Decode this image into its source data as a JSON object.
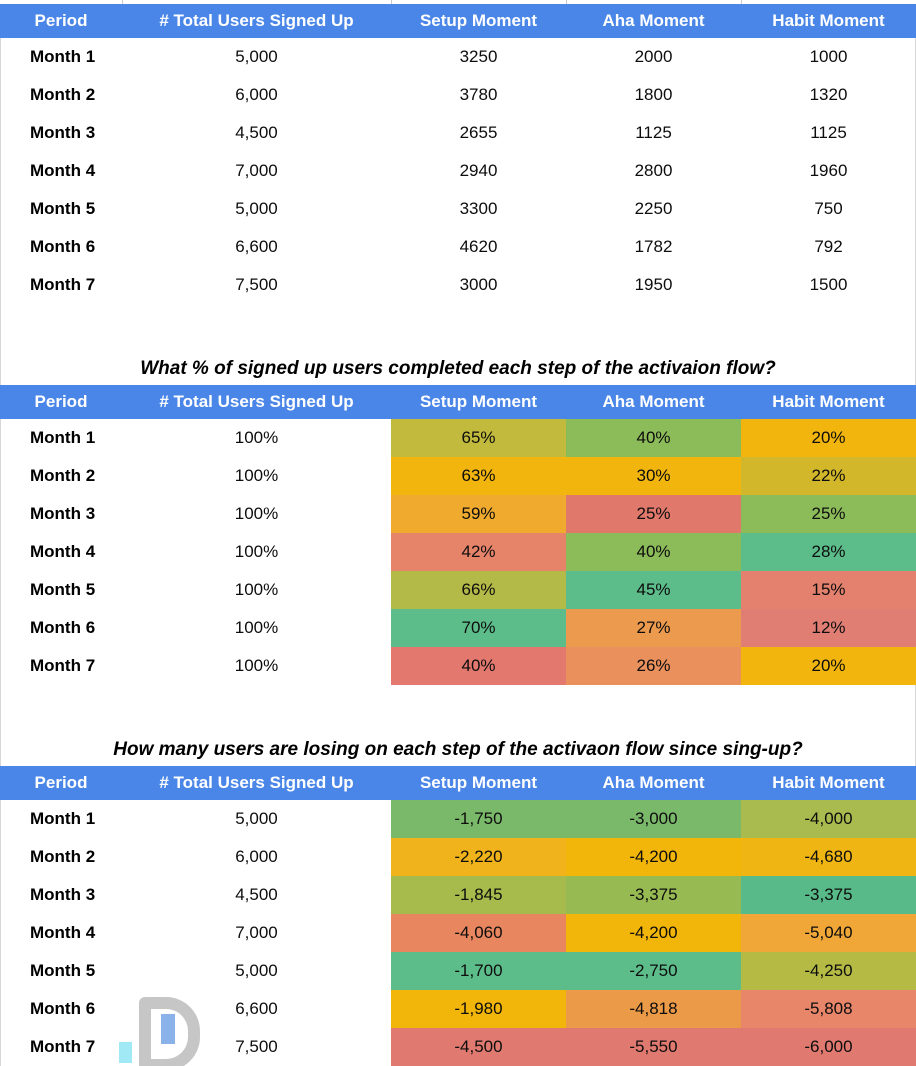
{
  "colors": {
    "header_bg": "#4a86e8",
    "header_text": "#ffffff",
    "heatmap_green": "#5cbd8b",
    "heatmap_yellow": "#f2b50e",
    "heatmap_red": "#e0756e"
  },
  "columns": [
    "Period",
    "# Total Users Signed Up",
    "Setup Moment",
    "Aha Moment",
    "Habit Moment"
  ],
  "tables": [
    {
      "id": "raw",
      "title": "",
      "rows": [
        [
          {
            "text": "Month 1"
          },
          {
            "text": "5,000"
          },
          {
            "text": "3250"
          },
          {
            "text": "2000"
          },
          {
            "text": "1000"
          }
        ],
        [
          {
            "text": "Month 2"
          },
          {
            "text": "6,000"
          },
          {
            "text": "3780"
          },
          {
            "text": "1800"
          },
          {
            "text": "1320"
          }
        ],
        [
          {
            "text": "Month 3"
          },
          {
            "text": "4,500"
          },
          {
            "text": "2655"
          },
          {
            "text": "1125"
          },
          {
            "text": "1125"
          }
        ],
        [
          {
            "text": "Month 4"
          },
          {
            "text": "7,000"
          },
          {
            "text": "2940"
          },
          {
            "text": "2800"
          },
          {
            "text": "1960"
          }
        ],
        [
          {
            "text": "Month 5"
          },
          {
            "text": "5,000"
          },
          {
            "text": "3300"
          },
          {
            "text": "2250"
          },
          {
            "text": "750"
          }
        ],
        [
          {
            "text": "Month 6"
          },
          {
            "text": "6,600"
          },
          {
            "text": "4620"
          },
          {
            "text": "1782"
          },
          {
            "text": "792"
          }
        ],
        [
          {
            "text": "Month 7"
          },
          {
            "text": "7,500"
          },
          {
            "text": "3000"
          },
          {
            "text": "1950"
          },
          {
            "text": "1500"
          }
        ]
      ]
    },
    {
      "id": "pct",
      "title": "What % of signed up users completed each step of the activaion flow?",
      "rows": [
        [
          {
            "text": "Month 1"
          },
          {
            "text": "100%"
          },
          {
            "text": "65%",
            "bg": "#c1ba3d"
          },
          {
            "text": "40%",
            "bg": "#8cbb59"
          },
          {
            "text": "20%",
            "bg": "#f2b50e"
          }
        ],
        [
          {
            "text": "Month 2"
          },
          {
            "text": "100%"
          },
          {
            "text": "63%",
            "bg": "#f2b50e"
          },
          {
            "text": "30%",
            "bg": "#f2b50e"
          },
          {
            "text": "22%",
            "bg": "#d3b72a"
          }
        ],
        [
          {
            "text": "Month 3"
          },
          {
            "text": "100%"
          },
          {
            "text": "59%",
            "bg": "#f0aa2e"
          },
          {
            "text": "25%",
            "bg": "#e0796c"
          },
          {
            "text": "25%",
            "bg": "#8cbb59"
          }
        ],
        [
          {
            "text": "Month 4"
          },
          {
            "text": "100%"
          },
          {
            "text": "42%",
            "bg": "#e6846a"
          },
          {
            "text": "40%",
            "bg": "#8cbb59"
          },
          {
            "text": "28%",
            "bg": "#5cbd8b"
          }
        ],
        [
          {
            "text": "Month 5"
          },
          {
            "text": "100%"
          },
          {
            "text": "66%",
            "bg": "#b4ba47"
          },
          {
            "text": "45%",
            "bg": "#5cbd8b"
          },
          {
            "text": "15%",
            "bg": "#e3806e"
          }
        ],
        [
          {
            "text": "Month 6"
          },
          {
            "text": "100%"
          },
          {
            "text": "70%",
            "bg": "#5cbd8b"
          },
          {
            "text": "27%",
            "bg": "#ec9a4e"
          },
          {
            "text": "12%",
            "bg": "#e07e74"
          }
        ],
        [
          {
            "text": "Month 7"
          },
          {
            "text": "100%"
          },
          {
            "text": "40%",
            "bg": "#e2786e"
          },
          {
            "text": "26%",
            "bg": "#e9905d"
          },
          {
            "text": "20%",
            "bg": "#f2b50e"
          }
        ]
      ]
    },
    {
      "id": "lost",
      "title": "How many users are losing on each step of the activaon flow since sing-up?",
      "rows": [
        [
          {
            "text": "Month 1"
          },
          {
            "text": "5,000"
          },
          {
            "text": "-1,750",
            "bg": "#7ab96a"
          },
          {
            "text": "-3,000",
            "bg": "#7ab96a"
          },
          {
            "text": "-4,000",
            "bg": "#a9bb4e"
          }
        ],
        [
          {
            "text": "Month 2"
          },
          {
            "text": "6,000"
          },
          {
            "text": "-2,220",
            "bg": "#f0b31c"
          },
          {
            "text": "-4,200",
            "bg": "#f2b60b"
          },
          {
            "text": "-4,680",
            "bg": "#eeb513"
          }
        ],
        [
          {
            "text": "Month 3"
          },
          {
            "text": "4,500"
          },
          {
            "text": "-1,845",
            "bg": "#a6bb4b"
          },
          {
            "text": "-3,375",
            "bg": "#97bb52"
          },
          {
            "text": "-3,375",
            "bg": "#58ba88"
          }
        ],
        [
          {
            "text": "Month 4"
          },
          {
            "text": "7,000"
          },
          {
            "text": "-4,060",
            "bg": "#e8875f"
          },
          {
            "text": "-4,200",
            "bg": "#f2b60b"
          },
          {
            "text": "-5,040",
            "bg": "#f0a737"
          }
        ],
        [
          {
            "text": "Month 5"
          },
          {
            "text": "5,000"
          },
          {
            "text": "-1,700",
            "bg": "#5cbd8b"
          },
          {
            "text": "-2,750",
            "bg": "#5cbd8b"
          },
          {
            "text": "-4,250",
            "bg": "#b5ba45"
          }
        ],
        [
          {
            "text": "Month 6"
          },
          {
            "text": "6,600"
          },
          {
            "text": "-1,980",
            "bg": "#f2b60b"
          },
          {
            "text": "-4,818",
            "bg": "#eb9a47"
          },
          {
            "text": "-5,808",
            "bg": "#e8866a"
          }
        ],
        [
          {
            "text": "Month 7"
          },
          {
            "text": "7,500"
          },
          {
            "text": "-4,500",
            "bg": "#e07a70"
          },
          {
            "text": "-5,550",
            "bg": "#e07a70"
          },
          {
            "text": "-6,000",
            "bg": "#e0796f"
          }
        ]
      ]
    }
  ],
  "watermark": {
    "icon": "letter-d-with-bar-chart",
    "d_color": "#c6c6c6",
    "blue_bar_color": "#8ab1e8",
    "cyan_bar_color": "#a0e9f5"
  }
}
